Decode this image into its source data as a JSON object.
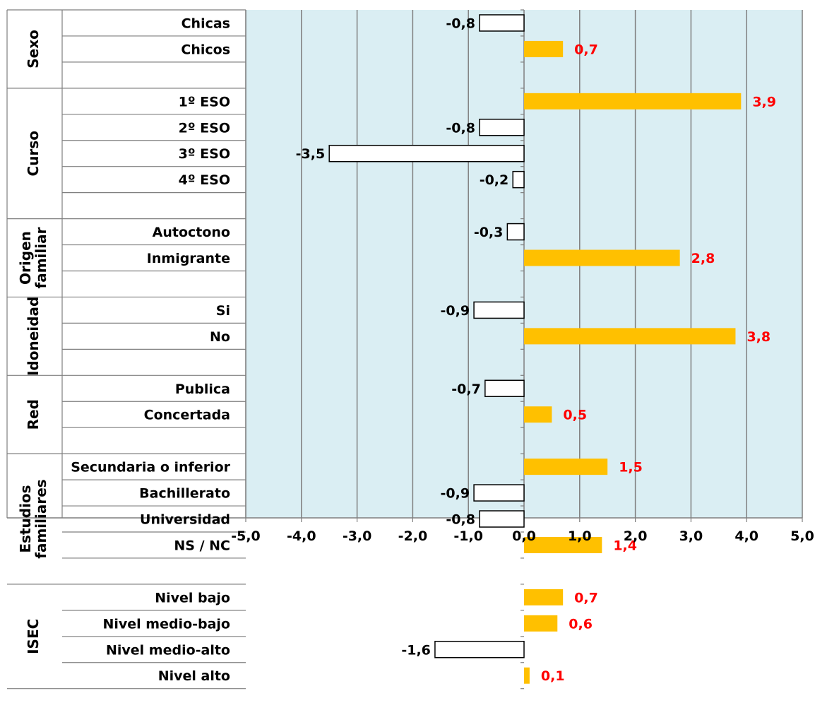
{
  "chart_data": {
    "type": "bar",
    "orientation": "horizontal",
    "title": "",
    "xlabel": "",
    "ylabel": "",
    "xlim": [
      -5,
      5
    ],
    "x_ticks": [
      "-5,0",
      "-4,0",
      "-3,0",
      "-2,0",
      "-1,0",
      "0,0",
      "1,0",
      "2,0",
      "3,0",
      "4,0",
      "5,0"
    ],
    "x_tick_values": [
      -5,
      -4,
      -3,
      -2,
      -1,
      0,
      1,
      2,
      3,
      4,
      5
    ],
    "grid": "vertical",
    "legend": "none",
    "colors": {
      "positive_fill": "#ffc000",
      "positive_label": "#ff0000",
      "negative_fill": "#ffffff",
      "negative_stroke": "#000000",
      "negative_label": "#000000",
      "plot_background": "#daeef3",
      "grid": "#7f7f7f"
    },
    "groups": [
      {
        "name": "Sexo",
        "categories": [
          {
            "label": "Chicas",
            "value": -0.8,
            "value_label": "-0,8"
          },
          {
            "label": "Chicos",
            "value": 0.7,
            "value_label": "0,7"
          }
        ]
      },
      {
        "name": "Curso",
        "categories": [
          {
            "label": "1º ESO",
            "value": 3.9,
            "value_label": "3,9"
          },
          {
            "label": "2º ESO",
            "value": -0.8,
            "value_label": "-0,8"
          },
          {
            "label": "3º ESO",
            "value": -3.5,
            "value_label": "-3,5"
          },
          {
            "label": "4º ESO",
            "value": -0.2,
            "value_label": "-0,2"
          }
        ]
      },
      {
        "name": "Origen familiar",
        "name_lines": [
          "Origen",
          "familiar"
        ],
        "categories": [
          {
            "label": "Autoctono",
            "value": -0.3,
            "value_label": "-0,3"
          },
          {
            "label": "Inmigrante",
            "value": 2.8,
            "value_label": "2,8"
          }
        ]
      },
      {
        "name": "Idoneidad",
        "categories": [
          {
            "label": "Si",
            "value": -0.9,
            "value_label": "-0,9"
          },
          {
            "label": "No",
            "value": 3.8,
            "value_label": "3,8"
          }
        ]
      },
      {
        "name": "Red",
        "categories": [
          {
            "label": "Publica",
            "value": -0.7,
            "value_label": "-0,7"
          },
          {
            "label": "Concertada",
            "value": 0.5,
            "value_label": "0,5"
          }
        ]
      },
      {
        "name": "Estudios familiares",
        "name_lines": [
          "Estudios",
          "familiares"
        ],
        "categories": [
          {
            "label": "Secundaria o inferior",
            "value": 1.5,
            "value_label": "1,5"
          },
          {
            "label": "Bachillerato",
            "value": -0.9,
            "value_label": "-0,9"
          },
          {
            "label": "Universidad",
            "value": -0.8,
            "value_label": "-0,8"
          },
          {
            "label": "NS / NC",
            "value": 1.4,
            "value_label": "1,4"
          }
        ]
      },
      {
        "name": "ISEC",
        "categories": [
          {
            "label": "Nivel bajo",
            "value": 0.7,
            "value_label": "0,7"
          },
          {
            "label": "Nivel medio-bajo",
            "value": 0.6,
            "value_label": "0,6"
          },
          {
            "label": "Nivel medio-alto",
            "value": -1.6,
            "value_label": "-1,6"
          },
          {
            "label": "Nivel alto",
            "value": 0.1,
            "value_label": "0,1"
          }
        ]
      }
    ]
  }
}
